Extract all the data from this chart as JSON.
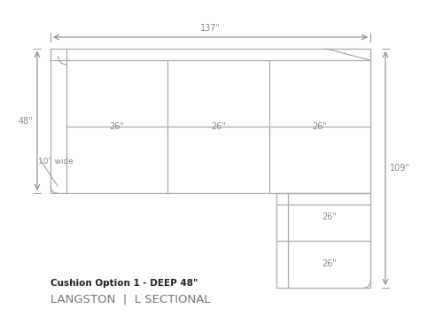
{
  "bg_color": "#ffffff",
  "line_color": "#aaaaaa",
  "dim_color": "#888888",
  "text_color": "#555555",
  "title_color": "#222222",
  "fig_width": 5.0,
  "fig_height": 3.75,
  "title_text": "Cushion Option 1 - DEEP 48\"",
  "subtitle_text": "LANGSTON  |  L SECTIONAL",
  "dim_137": "137\"",
  "dim_48": "48\"",
  "dim_109": "109\"",
  "dim_26_labels": [
    "26\"",
    "26\"",
    "26\"",
    "26\"",
    "26\""
  ],
  "arm_label": "10\" wide"
}
